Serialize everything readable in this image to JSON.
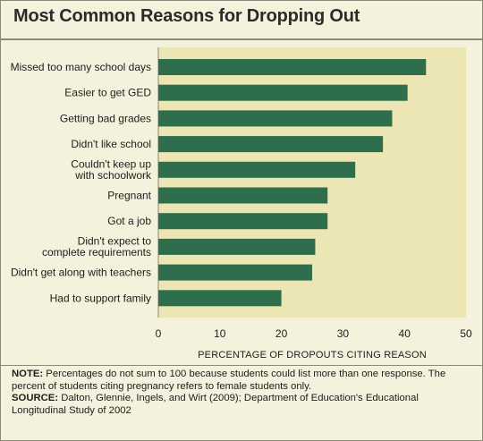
{
  "title": "Most Common Reasons for Dropping Out",
  "note_label": "NOTE:",
  "note_text": "Percentages do not sum to 100 because students could list more than one response. The percent of students citing pregnancy refers to female students only.",
  "source_label": "SOURCE:",
  "source_text": "Dalton, Glennie, Ingels, and Wirt (2009); Department of Education's Educational Longitudinal Study of 2002",
  "colors": {
    "bar": "#2e6e4c",
    "plot_bg": "#ece5b4",
    "page_bg": "#f4f1dc"
  },
  "chart_data": {
    "type": "bar",
    "orientation": "horizontal",
    "categories": [
      [
        "Missed too many school days"
      ],
      [
        "Easier to get GED"
      ],
      [
        "Getting bad grades"
      ],
      [
        "Didn't like school"
      ],
      [
        "Couldn't keep up",
        "with schoolwork"
      ],
      [
        "Pregnant"
      ],
      [
        "Got a job"
      ],
      [
        "Didn't expect to",
        "complete requirements"
      ],
      [
        "Didn't get along with teachers"
      ],
      [
        "Had to support family"
      ]
    ],
    "values": [
      43.5,
      40.5,
      38,
      36.5,
      32,
      27.5,
      27.5,
      25.5,
      25,
      20
    ],
    "xlabel": "PERCENTAGE OF DROPOUTS CITING REASON",
    "xlim": [
      0,
      50
    ],
    "xticks": [
      0,
      10,
      20,
      30,
      40,
      50
    ],
    "grid": false
  }
}
